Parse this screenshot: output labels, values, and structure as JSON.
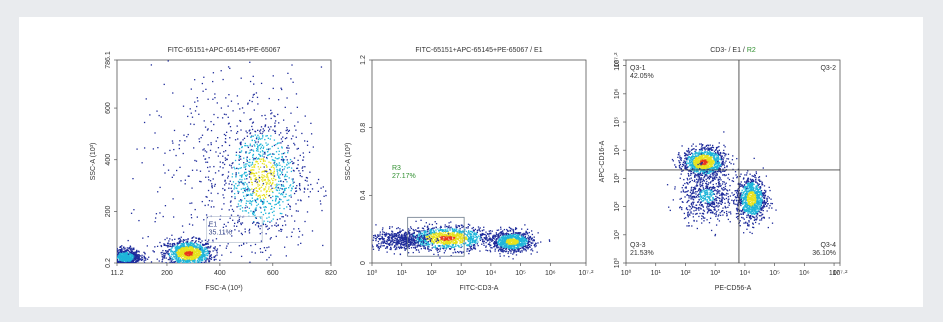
{
  "colors": {
    "page_background": "#e9ebee",
    "panel_background": "#ffffff",
    "gate_green": "#2f8f2f",
    "density_low": "#1d2a9a",
    "density_mid": "#1fb5d9",
    "density_high": "#e7e21c",
    "density_peak": "#e8361d"
  },
  "chart_data": [
    {
      "type": "scatter",
      "style": "density pseudocolor",
      "title": "FITC-65151+APC-65145+PE-65067",
      "xlabel": "FSC-A (10³)",
      "ylabel": "SSC-A (10³)",
      "xlim": [
        11.2,
        820
      ],
      "ylim": [
        0.2,
        786.1
      ],
      "x_ticks": [
        "11.2",
        "200",
        "400",
        "600",
        "820"
      ],
      "y_ticks": [
        "0.2",
        "200",
        "400",
        "600",
        "786.1"
      ],
      "populations": [
        {
          "x": 280,
          "y": 40,
          "spread_x": 45,
          "spread_y": 25,
          "density": 1.0
        },
        {
          "x": 560,
          "y": 330,
          "spread_x": 80,
          "spread_y": 120,
          "density": 0.8
        },
        {
          "x": 40,
          "y": 25,
          "spread_x": 30,
          "spread_y": 18,
          "density": 0.6
        },
        {
          "x": 430,
          "y": 380,
          "spread_x": 180,
          "spread_y": 200,
          "density": 0.25
        }
      ],
      "gate": {
        "name": "E1",
        "value": "35.11%",
        "x_range": [
          350,
          560
        ],
        "y_range": [
          80,
          180
        ]
      }
    },
    {
      "type": "scatter",
      "style": "density pseudocolor",
      "title": "FITC-65151+APC-65145+PE-65067 / E1",
      "xlabel": "FITC-CD3-A",
      "ylabel": "SSC-A (10³)",
      "log_x": true,
      "xlim": [
        0,
        7.2
      ],
      "ylim": [
        0,
        1.2
      ],
      "x_ticks": [
        "10⁰",
        "10¹",
        "10²",
        "10³",
        "10⁴",
        "10⁵",
        "10⁶",
        "10⁷·²"
      ],
      "y_ticks": [
        "0",
        "0.4",
        "0.8",
        "1.2"
      ],
      "populations": [
        {
          "x": 2.5,
          "y": 0.15,
          "spread_x": 0.7,
          "spread_y": 0.035,
          "density": 1.0
        },
        {
          "x": 4.7,
          "y": 0.13,
          "spread_x": 0.35,
          "spread_y": 0.03,
          "density": 0.8
        },
        {
          "x": 0.9,
          "y": 0.14,
          "spread_x": 0.5,
          "spread_y": 0.03,
          "density": 0.3
        }
      ],
      "gate": {
        "name": "R3",
        "value": "27.17%",
        "x_range": [
          1.2,
          3.1
        ],
        "y_range": [
          0.04,
          0.27
        ]
      }
    },
    {
      "type": "scatter",
      "style": "density pseudocolor, quadrant",
      "title": "CD3- / E1 / R2",
      "title_prefix": "CD3- / E1 /",
      "title_gate": "R2",
      "xlabel": "PE-CD56-A",
      "ylabel": "APC-CD16-A",
      "log_x": true,
      "log_y": true,
      "xlim": [
        0,
        7.2
      ],
      "ylim": [
        0,
        7.2
      ],
      "x_ticks": [
        "10⁰",
        "10¹",
        "10²",
        "10³",
        "10⁴",
        "10⁵",
        "10⁶",
        "10⁷",
        "10⁷·²"
      ],
      "y_ticks": [
        "10⁰",
        "10¹",
        "10²",
        "10³",
        "10⁴",
        "10⁵",
        "10⁶",
        "10⁷",
        "10⁷·²"
      ],
      "quadrant_divider": {
        "x": 3.8,
        "y": 3.3
      },
      "quadrants": [
        {
          "name": "Q3-1",
          "value": "42.05%",
          "position": "top-left"
        },
        {
          "name": "Q3-2",
          "value": "",
          "position": "top-right"
        },
        {
          "name": "Q3-3",
          "value": "21.53%",
          "position": "bottom-left"
        },
        {
          "name": "Q3-4",
          "value": "36.10%",
          "position": "bottom-right"
        }
      ],
      "populations": [
        {
          "x": 2.6,
          "y": 3.6,
          "spread_x": 0.35,
          "spread_y": 0.25,
          "density": 1.0
        },
        {
          "x": 4.2,
          "y": 2.3,
          "spread_x": 0.25,
          "spread_y": 0.4,
          "density": 0.8
        },
        {
          "x": 2.7,
          "y": 2.4,
          "spread_x": 0.45,
          "spread_y": 0.45,
          "density": 0.45
        }
      ]
    }
  ]
}
